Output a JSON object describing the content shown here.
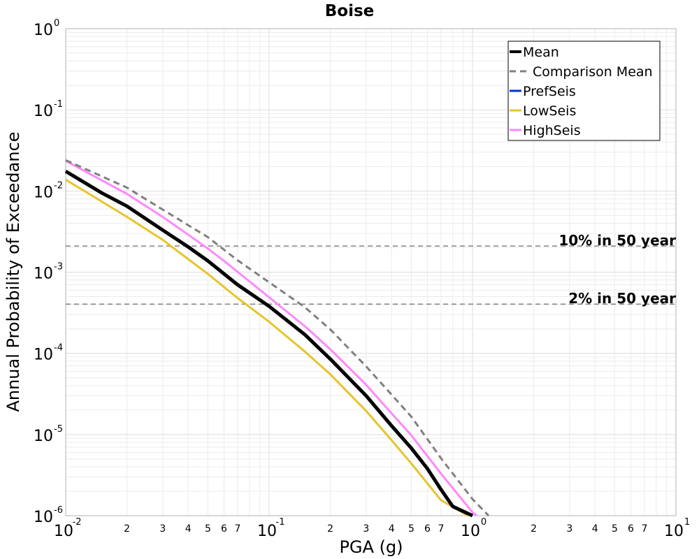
{
  "chart_data": {
    "type": "line",
    "title": "Boise",
    "xlabel": "PGA (g)",
    "ylabel": "Annual Probability of Exceedance",
    "xscale": "log",
    "yscale": "log",
    "xlim": [
      0.01,
      10
    ],
    "ylim": [
      1e-06,
      1
    ],
    "grid": true,
    "legend_position": "top-right",
    "x_major_ticks": [
      {
        "base": "10",
        "exp": "-2"
      },
      {
        "base": "10",
        "exp": "-1"
      },
      {
        "base": "10",
        "exp": "0"
      },
      {
        "base": "10",
        "exp": "1"
      }
    ],
    "x_minor_ticks": [
      {
        "value": 0.02,
        "label": "2"
      },
      {
        "value": 0.03,
        "label": "3"
      },
      {
        "value": 0.04,
        "label": "4"
      },
      {
        "value": 0.05,
        "label": "5"
      },
      {
        "value": 0.06,
        "label": "6"
      },
      {
        "value": 0.07,
        "label": "7"
      },
      {
        "value": 0.2,
        "label": "2"
      },
      {
        "value": 0.3,
        "label": "3"
      },
      {
        "value": 0.4,
        "label": "4"
      },
      {
        "value": 0.5,
        "label": "5"
      },
      {
        "value": 0.6,
        "label": "6"
      },
      {
        "value": 0.7,
        "label": "7"
      },
      {
        "value": 2,
        "label": "2"
      },
      {
        "value": 3,
        "label": "3"
      },
      {
        "value": 4,
        "label": "4"
      },
      {
        "value": 5,
        "label": "5"
      },
      {
        "value": 6,
        "label": "6"
      },
      {
        "value": 7,
        "label": "7"
      }
    ],
    "y_major_ticks": [
      {
        "base": "10",
        "exp": "0"
      },
      {
        "base": "10",
        "exp": "-1"
      },
      {
        "base": "10",
        "exp": "-2"
      },
      {
        "base": "10",
        "exp": "-3"
      },
      {
        "base": "10",
        "exp": "-4"
      },
      {
        "base": "10",
        "exp": "-5"
      },
      {
        "base": "10",
        "exp": "-6"
      }
    ],
    "reference_lines": [
      {
        "label": "10% in 50 year",
        "y": 0.0021,
        "color": "#808080",
        "dash": "dashed"
      },
      {
        "label": "2% in 50 year",
        "y": 0.000404,
        "color": "#808080",
        "dash": "dashed"
      }
    ],
    "series": [
      {
        "name": "Mean",
        "color": "#000000",
        "style": "solid",
        "width": "thick",
        "x": [
          0.01,
          0.015,
          0.02,
          0.03,
          0.04,
          0.05,
          0.07,
          0.1,
          0.15,
          0.2,
          0.3,
          0.4,
          0.5,
          0.6,
          0.7,
          0.8,
          1.0
        ],
        "y": [
          0.0175,
          0.0095,
          0.0065,
          0.0033,
          0.00205,
          0.00138,
          0.0007,
          0.00038,
          0.00017,
          8.5e-05,
          3e-05,
          1.28e-05,
          6.8e-06,
          3.8e-06,
          2.1e-06,
          1.3e-06,
          1e-06
        ]
      },
      {
        "name": "Comparison Mean",
        "color": "#808080",
        "style": "dashed",
        "width": "normal",
        "x": [
          0.01,
          0.02,
          0.03,
          0.05,
          0.07,
          0.1,
          0.15,
          0.2,
          0.3,
          0.4,
          0.5,
          0.7,
          1.0,
          1.2
        ],
        "y": [
          0.024,
          0.011,
          0.0059,
          0.0027,
          0.0014,
          0.00075,
          0.00037,
          0.000197,
          6.9e-05,
          3.1e-05,
          1.66e-05,
          5.1e-06,
          1.6e-06,
          1e-06
        ]
      },
      {
        "name": "PrefSeis",
        "color": "#0033dd",
        "style": "solid",
        "width": "normal",
        "x": [],
        "y": []
      },
      {
        "name": "LowSeis",
        "color": "#e8c42a",
        "style": "solid",
        "width": "normal",
        "x": [
          0.01,
          0.02,
          0.03,
          0.05,
          0.07,
          0.1,
          0.15,
          0.2,
          0.3,
          0.4,
          0.5,
          0.7,
          0.95
        ],
        "y": [
          0.0138,
          0.0048,
          0.0025,
          0.00095,
          0.00048,
          0.000245,
          0.000105,
          5.5e-05,
          1.95e-05,
          8.5e-06,
          4.4e-06,
          1.55e-06,
          1e-06
        ]
      },
      {
        "name": "HighSeis",
        "color": "#ff88ff",
        "style": "solid",
        "width": "normal",
        "x": [
          0.01,
          0.02,
          0.03,
          0.04,
          0.05,
          0.06,
          0.07,
          0.1,
          0.15,
          0.2,
          0.3,
          0.4,
          0.5,
          0.7,
          1.0,
          1.05
        ],
        "y": [
          0.0235,
          0.0092,
          0.0048,
          0.0029,
          0.00195,
          0.00138,
          0.00101,
          0.00049,
          0.000215,
          0.000112,
          4.1e-05,
          1.82e-05,
          9.8e-06,
          3.3e-06,
          1.1e-06,
          1e-06
        ]
      }
    ]
  }
}
